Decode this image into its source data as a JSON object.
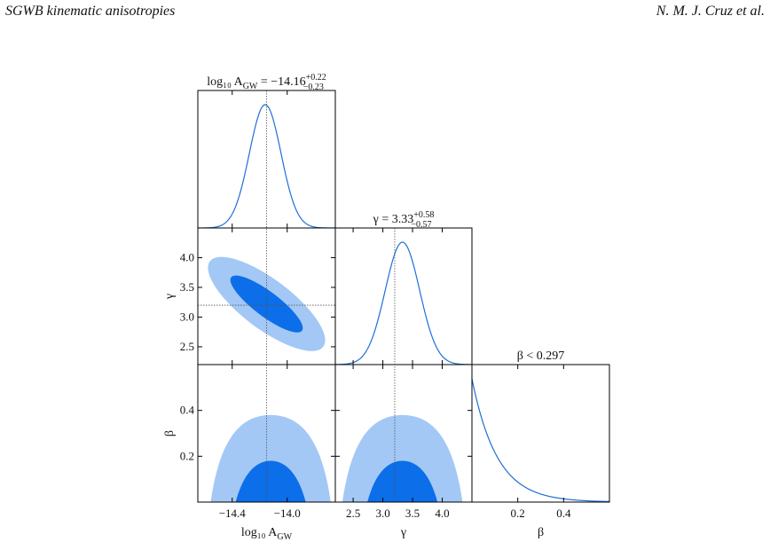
{
  "header": {
    "left": "SGWB kinematic anisotropies",
    "right": "N. M. J. Cruz et al."
  },
  "colors": {
    "line": "#1f6fd6",
    "contour_outer": "#a3c8f5",
    "contour_inner": "#0c6ee8",
    "reference_line": "#555555"
  },
  "chart_data": {
    "type": "corner",
    "parameters": [
      {
        "symbol": "log10 A_GW",
        "axis_label": "log₁₀ A",
        "axis_label_sub": "GW",
        "range": [
          -14.65,
          -13.65
        ],
        "ticks": [
          -14.4,
          -14.0
        ],
        "tick_labels": [
          "−14.4",
          "−14.0"
        ],
        "truth": -14.15
      },
      {
        "symbol": "gamma",
        "axis_label": "γ",
        "axis_label_sub": "",
        "range": [
          2.2,
          4.5
        ],
        "ticks": [
          2.5,
          3.0,
          3.5,
          4.0
        ],
        "tick_labels": [
          "2.5",
          "3.0",
          "3.5",
          "4.0"
        ],
        "truth": 3.2
      },
      {
        "symbol": "beta",
        "axis_label": "β",
        "axis_label_sub": "",
        "range": [
          0.0,
          0.6
        ],
        "ticks": [
          0.2,
          0.4
        ],
        "tick_labels": [
          "0.2",
          "0.4"
        ],
        "truth": null
      }
    ],
    "marginal_titles": [
      {
        "prefix": "log₁₀ A",
        "sub": "GW",
        "eq": " = −14.16",
        "sup_err": "+0.22",
        "sub_err": "−0.23"
      },
      {
        "prefix": "γ",
        "sub": "",
        "eq": " = 3.33",
        "sup_err": "+0.58",
        "sub_err": "−0.57"
      },
      {
        "prefix": "β",
        "sub": "",
        "eq": " < 0.297",
        "sup_err": "",
        "sub_err": ""
      }
    ],
    "marginals": [
      {
        "type": "gaussian",
        "mean": -14.16,
        "sigma": 0.115
      },
      {
        "type": "gaussian",
        "mean": 3.33,
        "sigma": 0.29
      },
      {
        "type": "decay",
        "peak_at": 0.0,
        "scale": 0.11
      }
    ],
    "contours": [
      {
        "x": "log10 A_GW",
        "y": "gamma",
        "shape": "ellipse",
        "center": [
          -14.15,
          3.22
        ],
        "orientation": "negative correlation"
      },
      {
        "x": "log10 A_GW",
        "y": "beta",
        "shape": "one-sided",
        "center_x": -14.12,
        "beta_68": 0.18,
        "beta_95": 0.38
      },
      {
        "x": "gamma",
        "y": "beta",
        "shape": "one-sided",
        "center_x": 3.33,
        "beta_68": 0.18,
        "beta_95": 0.38
      }
    ],
    "y_axes": {
      "gamma": {
        "range": [
          2.2,
          4.5
        ],
        "ticks": [
          2.5,
          3.0,
          3.5,
          4.0
        ],
        "tick_labels": [
          "2.5",
          "3.0",
          "3.5",
          "4.0"
        ]
      },
      "beta": {
        "range": [
          0.0,
          0.6
        ],
        "ticks": [
          0.2,
          0.4
        ],
        "tick_labels": [
          "0.2",
          "0.4"
        ]
      }
    }
  }
}
